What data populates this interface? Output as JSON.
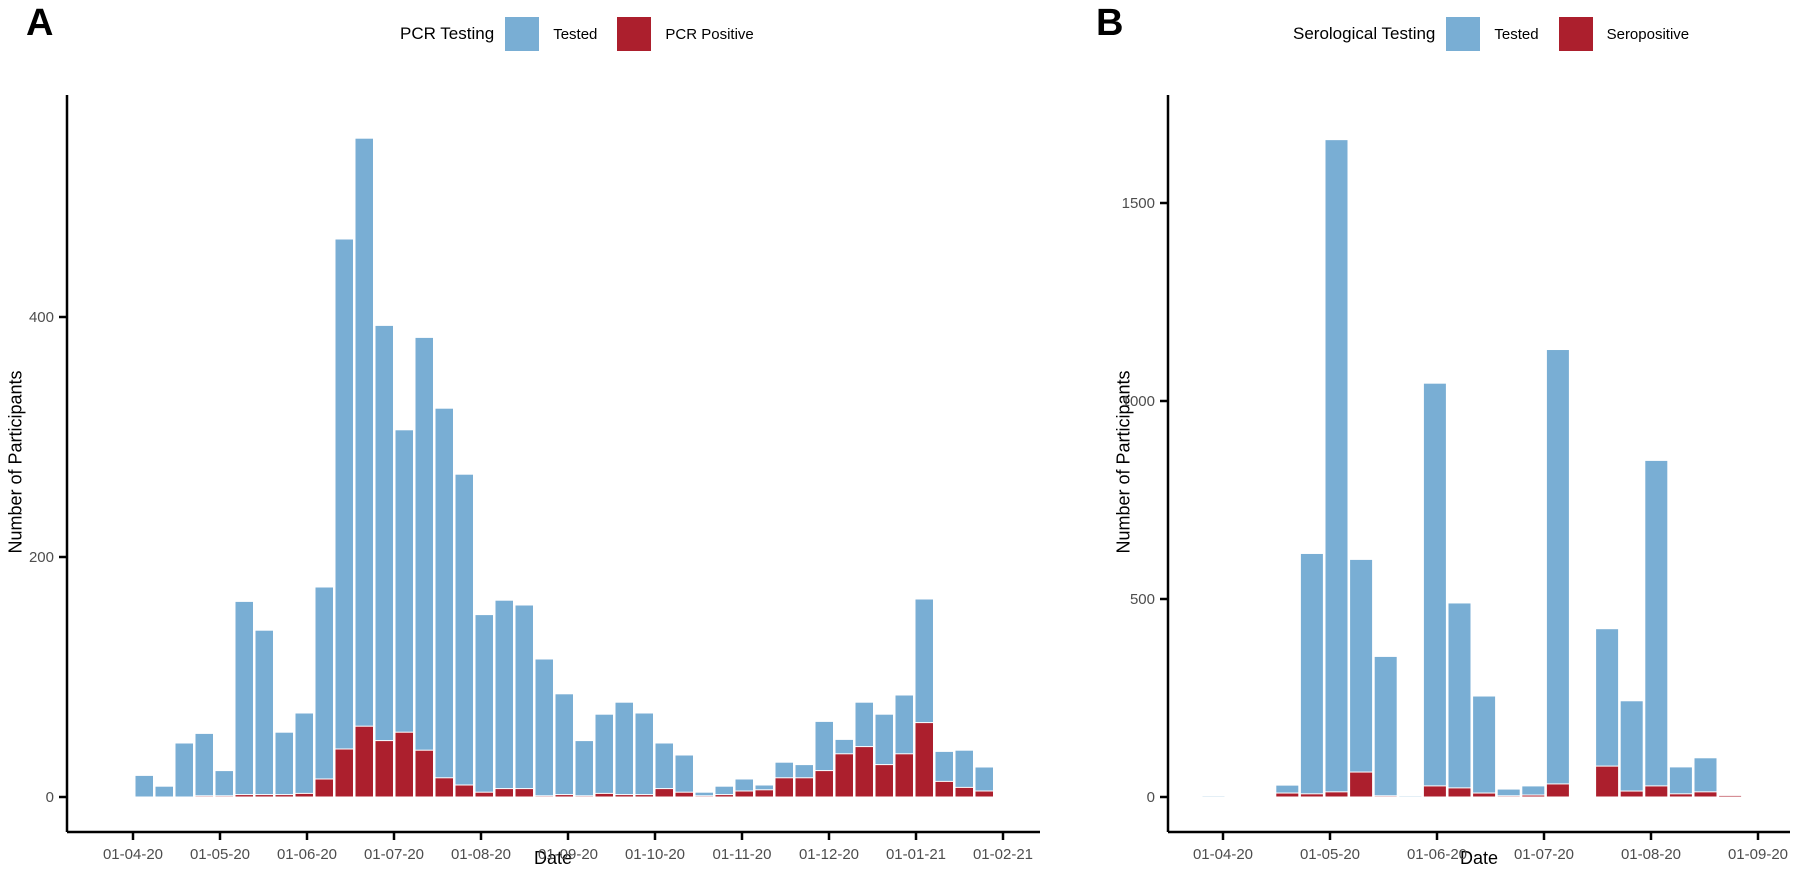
{
  "colors": {
    "tested": "#79AED4",
    "positive": "#AC1F2D",
    "axis": "#000000",
    "tick_label": "#4d4d4d",
    "background": "#ffffff"
  },
  "chart_data": [
    {
      "id": "A",
      "type": "bar",
      "stacked": true,
      "panel_label": "A",
      "title": "PCR Testing",
      "xlabel": "Date",
      "ylabel": "Number of Participants",
      "x_tick_labels": [
        "01-04-20",
        "01-05-20",
        "01-06-20",
        "01-07-20",
        "01-08-20",
        "01-09-20",
        "01-10-20",
        "01-11-20",
        "01-12-20",
        "01-01-21",
        "01-02-21"
      ],
      "y_ticks": [
        0,
        200,
        400
      ],
      "ylim": [
        0,
        585
      ],
      "grid": false,
      "legend_position": "top",
      "legend": [
        {
          "name": "Tested",
          "color": "#79AED4"
        },
        {
          "name": "PCR Positive",
          "color": "#AC1F2D"
        }
      ],
      "weeks": [
        {
          "date": "02-04-20",
          "tested": 18,
          "positive": 0
        },
        {
          "date": "09-04-20",
          "tested": 9,
          "positive": 0
        },
        {
          "date": "16-04-20",
          "tested": 45,
          "positive": 0
        },
        {
          "date": "23-04-20",
          "tested": 53,
          "positive": 1
        },
        {
          "date": "30-04-20",
          "tested": 22,
          "positive": 1
        },
        {
          "date": "07-05-20",
          "tested": 163,
          "positive": 2
        },
        {
          "date": "14-05-20",
          "tested": 139,
          "positive": 2
        },
        {
          "date": "21-05-20",
          "tested": 54,
          "positive": 2
        },
        {
          "date": "28-05-20",
          "tested": 70,
          "positive": 3
        },
        {
          "date": "04-06-20",
          "tested": 175,
          "positive": 15
        },
        {
          "date": "11-06-20",
          "tested": 465,
          "positive": 40
        },
        {
          "date": "18-06-20",
          "tested": 549,
          "positive": 59
        },
        {
          "date": "25-06-20",
          "tested": 393,
          "positive": 47
        },
        {
          "date": "02-07-20",
          "tested": 306,
          "positive": 54
        },
        {
          "date": "09-07-20",
          "tested": 383,
          "positive": 39
        },
        {
          "date": "16-07-20",
          "tested": 324,
          "positive": 16
        },
        {
          "date": "23-07-20",
          "tested": 269,
          "positive": 10
        },
        {
          "date": "30-07-20",
          "tested": 152,
          "positive": 4
        },
        {
          "date": "06-08-20",
          "tested": 164,
          "positive": 7
        },
        {
          "date": "13-08-20",
          "tested": 160,
          "positive": 7
        },
        {
          "date": "20-08-20",
          "tested": 115,
          "positive": 1
        },
        {
          "date": "27-08-20",
          "tested": 86,
          "positive": 2
        },
        {
          "date": "03-09-20",
          "tested": 47,
          "positive": 1
        },
        {
          "date": "10-09-20",
          "tested": 69,
          "positive": 3
        },
        {
          "date": "17-09-20",
          "tested": 79,
          "positive": 2
        },
        {
          "date": "24-09-20",
          "tested": 70,
          "positive": 2
        },
        {
          "date": "01-10-20",
          "tested": 45,
          "positive": 7
        },
        {
          "date": "08-10-20",
          "tested": 35,
          "positive": 4
        },
        {
          "date": "15-10-20",
          "tested": 4,
          "positive": 1
        },
        {
          "date": "22-10-20",
          "tested": 9,
          "positive": 2
        },
        {
          "date": "29-10-20",
          "tested": 15,
          "positive": 5
        },
        {
          "date": "05-11-20",
          "tested": 10,
          "positive": 6
        },
        {
          "date": "12-11-20",
          "tested": 29,
          "positive": 16
        },
        {
          "date": "19-11-20",
          "tested": 27,
          "positive": 16
        },
        {
          "date": "26-11-20",
          "tested": 63,
          "positive": 22
        },
        {
          "date": "03-12-20",
          "tested": 48,
          "positive": 36
        },
        {
          "date": "10-12-20",
          "tested": 79,
          "positive": 42
        },
        {
          "date": "17-12-20",
          "tested": 69,
          "positive": 27
        },
        {
          "date": "24-12-20",
          "tested": 85,
          "positive": 36
        },
        {
          "date": "31-12-20",
          "tested": 165,
          "positive": 62
        },
        {
          "date": "07-01-21",
          "tested": 38,
          "positive": 13
        },
        {
          "date": "14-01-21",
          "tested": 39,
          "positive": 8
        },
        {
          "date": "21-01-21",
          "tested": 25,
          "positive": 5
        }
      ]
    },
    {
      "id": "B",
      "type": "bar",
      "stacked": true,
      "panel_label": "B",
      "title": "Serological Testing",
      "xlabel": "Date",
      "ylabel": "Number of Participants",
      "x_tick_labels": [
        "01-04-20",
        "01-05-20",
        "01-06-20",
        "01-07-20",
        "01-08-20",
        "01-09-20"
      ],
      "y_ticks": [
        0,
        500,
        1000,
        1500
      ],
      "ylim": [
        0,
        1770
      ],
      "grid": false,
      "legend_position": "top",
      "legend": [
        {
          "name": "Tested",
          "color": "#79AED4"
        },
        {
          "name": "Seropositive",
          "color": "#AC1F2D"
        }
      ],
      "weeks": [
        {
          "date": "29-03-20",
          "slot": 0,
          "tested": 2,
          "positive": 0
        },
        {
          "date": "18-04-20",
          "slot": 3,
          "tested": 30,
          "positive": 10
        },
        {
          "date": "25-04-20",
          "slot": 4,
          "tested": 615,
          "positive": 8
        },
        {
          "date": "02-05-20",
          "slot": 5,
          "tested": 1660,
          "positive": 13
        },
        {
          "date": "09-05-20",
          "slot": 6,
          "tested": 600,
          "positive": 63
        },
        {
          "date": "16-05-20",
          "slot": 7,
          "tested": 355,
          "positive": 3
        },
        {
          "date": "23-05-20",
          "slot": 8,
          "tested": 2,
          "positive": 0
        },
        {
          "date": "30-05-20",
          "slot": 9,
          "tested": 1045,
          "positive": 28
        },
        {
          "date": "06-06-20",
          "slot": 10,
          "tested": 490,
          "positive": 23
        },
        {
          "date": "13-06-20",
          "slot": 11,
          "tested": 255,
          "positive": 10
        },
        {
          "date": "20-06-20",
          "slot": 12,
          "tested": 20,
          "positive": 3
        },
        {
          "date": "27-06-20",
          "slot": 13,
          "tested": 28,
          "positive": 5
        },
        {
          "date": "04-07-20",
          "slot": 14,
          "tested": 1130,
          "positive": 33
        },
        {
          "date": "18-07-20",
          "slot": 16,
          "tested": 425,
          "positive": 78
        },
        {
          "date": "25-07-20",
          "slot": 17,
          "tested": 243,
          "positive": 15
        },
        {
          "date": "01-08-20",
          "slot": 18,
          "tested": 850,
          "positive": 28
        },
        {
          "date": "08-08-20",
          "slot": 19,
          "tested": 76,
          "positive": 8
        },
        {
          "date": "15-08-20",
          "slot": 20,
          "tested": 99,
          "positive": 13
        },
        {
          "date": "22-08-20",
          "slot": 21,
          "tested": 5,
          "positive": 4
        }
      ]
    }
  ]
}
